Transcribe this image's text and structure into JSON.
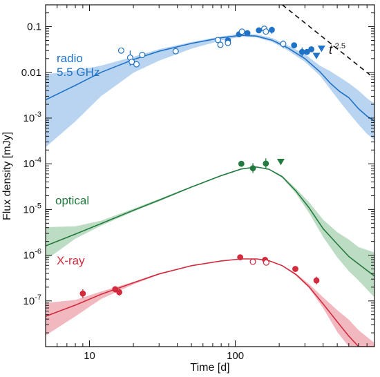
{
  "chart_data": {
    "type": "scatter",
    "title": "",
    "xlabel": "Time [d]",
    "ylabel": "Flux density [mJy]",
    "xscale": "log",
    "yscale": "log",
    "xlim": [
      5,
      900
    ],
    "ylim": [
      1e-08,
      0.3
    ],
    "grid": false,
    "x_tick_labels": [
      {
        "value": 10,
        "label": "10"
      },
      {
        "value": 100,
        "label": "100"
      }
    ],
    "y_tick_labels": [
      {
        "value": 1e-07,
        "mantissa": "10",
        "exp": "-7",
        "plain": ""
      },
      {
        "value": 1e-06,
        "mantissa": "10",
        "exp": "-6",
        "plain": ""
      },
      {
        "value": 1e-05,
        "mantissa": "10",
        "exp": "-5",
        "plain": ""
      },
      {
        "value": 0.0001,
        "mantissa": "10",
        "exp": "-4",
        "plain": ""
      },
      {
        "value": 0.001,
        "mantissa": "10",
        "exp": "-3",
        "plain": ""
      },
      {
        "value": 0.01,
        "mantissa": "",
        "exp": "",
        "plain": "0.01"
      },
      {
        "value": 0.1,
        "mantissa": "",
        "exp": "",
        "plain": "0.1"
      }
    ],
    "annotation": {
      "base": "t",
      "exp": "-2.5",
      "line_x": [
        210,
        850
      ],
      "line_y": [
        0.3,
        0.0085
      ]
    },
    "series": [
      {
        "name": "radio 5.5 GHz",
        "label_lines": [
          "radio",
          "5.5 GHz"
        ],
        "color": "#1f72c6",
        "band_color": "#b9d4f0",
        "model": {
          "x": [
            5,
            8,
            12,
            20,
            30,
            50,
            80,
            110,
            140,
            180,
            230,
            300,
            380,
            450,
            520,
            600,
            700,
            800,
            900
          ],
          "y": [
            0.0025,
            0.0052,
            0.01,
            0.019,
            0.029,
            0.043,
            0.057,
            0.065,
            0.062,
            0.05,
            0.034,
            0.02,
            0.0103,
            0.0057,
            0.0038,
            0.0028,
            0.0016,
            0.0011,
            0.00086
          ],
          "low": [
            0.00023,
            0.00085,
            0.003,
            0.0098,
            0.018,
            0.033,
            0.05,
            0.06,
            0.058,
            0.046,
            0.03,
            0.017,
            0.0085,
            0.0042,
            0.0023,
            0.0013,
            0.00072,
            0.00045,
            0.00033
          ],
          "high": [
            0.009,
            0.011,
            0.014,
            0.022,
            0.032,
            0.046,
            0.061,
            0.07,
            0.068,
            0.056,
            0.039,
            0.025,
            0.014,
            0.0105,
            0.0078,
            0.0058,
            0.004,
            0.0027,
            0.0021
          ]
        },
        "points": [
          {
            "x": 16.5,
            "y": 0.03,
            "marker": "open",
            "err": null
          },
          {
            "x": 19.0,
            "y": 0.021,
            "marker": "open",
            "err": [
              0.014,
              0.03
            ]
          },
          {
            "x": 19.5,
            "y": 0.017,
            "marker": "open",
            "err": null
          },
          {
            "x": 21.0,
            "y": 0.015,
            "marker": "open",
            "err": null
          },
          {
            "x": 23.0,
            "y": 0.024,
            "marker": "open",
            "err": null
          },
          {
            "x": 39.0,
            "y": 0.029,
            "marker": "open",
            "err": null
          },
          {
            "x": 76.0,
            "y": 0.051,
            "marker": "open",
            "err": null
          },
          {
            "x": 79.0,
            "y": 0.04,
            "marker": "open",
            "err": null
          },
          {
            "x": 89.0,
            "y": 0.05,
            "marker": "filled",
            "err": null
          },
          {
            "x": 89.0,
            "y": 0.044,
            "marker": "open",
            "err": null
          },
          {
            "x": 106.0,
            "y": 0.068,
            "marker": "filled",
            "err": null
          },
          {
            "x": 111.0,
            "y": 0.078,
            "marker": "open",
            "err": null
          },
          {
            "x": 121.0,
            "y": 0.072,
            "marker": "filled",
            "err": null
          },
          {
            "x": 145.0,
            "y": 0.083,
            "marker": "filled",
            "err": null
          },
          {
            "x": 158.0,
            "y": 0.09,
            "marker": "open",
            "err": null
          },
          {
            "x": 162.0,
            "y": 0.078,
            "marker": "open",
            "err": null
          },
          {
            "x": 178.0,
            "y": 0.085,
            "marker": "filled",
            "err": [
              0.07,
              0.1
            ]
          },
          {
            "x": 213.0,
            "y": 0.042,
            "marker": "open",
            "err": [
              0.034,
              0.05
            ]
          },
          {
            "x": 253.0,
            "y": 0.039,
            "marker": "filled",
            "err": null
          },
          {
            "x": 287.0,
            "y": 0.028,
            "marker": "filled",
            "err": [
              0.022,
              0.035
            ]
          },
          {
            "x": 310.0,
            "y": 0.028,
            "marker": "filled",
            "err": null
          },
          {
            "x": 332.0,
            "y": 0.032,
            "marker": "filled",
            "err": null
          },
          {
            "x": 360.0,
            "y": 0.023,
            "marker": "triangle",
            "err": null
          },
          {
            "x": 390.0,
            "y": 0.033,
            "marker": "triangle",
            "err": null
          }
        ]
      },
      {
        "name": "optical",
        "label_lines": [
          "optical"
        ],
        "color": "#237a3f",
        "band_color": "#bddcc4",
        "model": {
          "x": [
            5,
            8,
            12,
            20,
            30,
            50,
            80,
            110,
            140,
            170,
            210,
            260,
            320,
            400,
            500,
            600,
            700,
            900
          ],
          "y": [
            1.6e-06,
            2.9e-06,
            4.9e-06,
            9.6e-06,
            1.6e-05,
            3.1e-05,
            5.5e-05,
            7.7e-05,
            8.5e-05,
            7.6e-05,
            5.2e-05,
            2.55e-05,
            1.1e-05,
            3.8e-06,
            1.75e-06,
            9.4e-07,
            6.4e-07,
            3.5e-07
          ],
          "low": [
            7.8e-07,
            2.3e-06,
            4.4e-06,
            9e-06,
            1.5e-05,
            3e-05,
            5.3e-05,
            7.5e-05,
            8.3e-05,
            7.4e-05,
            4.9e-05,
            2.25e-05,
            8.5e-06,
            2.5e-06,
            9e-07,
            4.5e-07,
            2.8e-07,
            1.2e-07
          ],
          "high": [
            4.1e-06,
            4.3e-06,
            5.7e-06,
            1.04e-05,
            1.7e-05,
            3.2e-05,
            5.7e-05,
            7.9e-05,
            8.7e-05,
            7.8e-05,
            5.5e-05,
            2.9e-05,
            1.45e-05,
            6e-06,
            3.2e-06,
            2.2e-06,
            1.5e-06,
            1.15e-06
          ]
        },
        "points": [
          {
            "x": 110.0,
            "y": 0.0001,
            "marker": "filled",
            "err": null
          },
          {
            "x": 132.0,
            "y": 8e-05,
            "marker": "filled",
            "err": [
              6.3e-05,
              0.000103
            ]
          },
          {
            "x": 162.0,
            "y": 0.000101,
            "marker": "filled",
            "err": [
              7.7e-05,
              0.000132
            ]
          },
          {
            "x": 205.0,
            "y": 0.00011,
            "marker": "triangle",
            "err": null
          }
        ]
      },
      {
        "name": "X-ray",
        "label_lines": [
          "X-ray"
        ],
        "color": "#d12b3d",
        "band_color": "#f2b8bf",
        "model": {
          "x": [
            5,
            8,
            12,
            20,
            30,
            50,
            80,
            110,
            140,
            170,
            210,
            260,
            320,
            400,
            500,
            600,
            700,
            900
          ],
          "y": [
            4.6e-08,
            8.1e-08,
            1.39e-07,
            2.5e-07,
            3.9e-07,
            5.9e-07,
            7.5e-07,
            8.3e-07,
            8.3e-07,
            7.6e-07,
            5.9e-07,
            3.8e-07,
            2.05e-07,
            8.6e-08,
            3.5e-08,
            1.7e-08,
            1e-08,
            1e-08
          ],
          "low": [
            1.75e-08,
            4.6e-08,
            1.1e-07,
            2.3e-07,
            3.75e-07,
            5.8e-07,
            7.4e-07,
            8.2e-07,
            8.2e-07,
            7.5e-07,
            5.8e-07,
            3.6e-07,
            1.9e-07,
            7e-08,
            2.1e-08,
            1e-08,
            1e-08,
            1e-08
          ],
          "high": [
            9e-08,
            1.05e-07,
            1.6e-07,
            2.6e-07,
            4e-07,
            6e-07,
            7.6e-07,
            8.4e-07,
            8.4e-07,
            7.7e-07,
            6e-07,
            4e-07,
            2.35e-07,
            1.2e-07,
            6.3e-08,
            3.9e-08,
            2.3e-08,
            1.2e-08
          ]
        },
        "points": [
          {
            "x": 9.0,
            "y": 1.45e-07,
            "marker": "filled",
            "err": [
              1.15e-07,
              1.8e-07
            ]
          },
          {
            "x": 15.0,
            "y": 1.8e-07,
            "marker": "filled",
            "err": [
              1.5e-07,
              2.1e-07
            ]
          },
          {
            "x": 16.0,
            "y": 1.55e-07,
            "marker": "filled",
            "err": [
              1.3e-07,
              1.85e-07
            ]
          },
          {
            "x": 108.0,
            "y": 9e-07,
            "marker": "filled",
            "err": null
          },
          {
            "x": 132.0,
            "y": 7.2e-07,
            "marker": "open",
            "err": null
          },
          {
            "x": 160.0,
            "y": 7.9e-07,
            "marker": "filled",
            "err": null
          },
          {
            "x": 163.0,
            "y": 6.9e-07,
            "marker": "open",
            "err": null
          },
          {
            "x": 258.0,
            "y": 5e-07,
            "marker": "filled",
            "err": null
          },
          {
            "x": 360.0,
            "y": 2.8e-07,
            "marker": "filled",
            "err": [
              2.3e-07,
              3.4e-07
            ]
          }
        ]
      }
    ]
  }
}
